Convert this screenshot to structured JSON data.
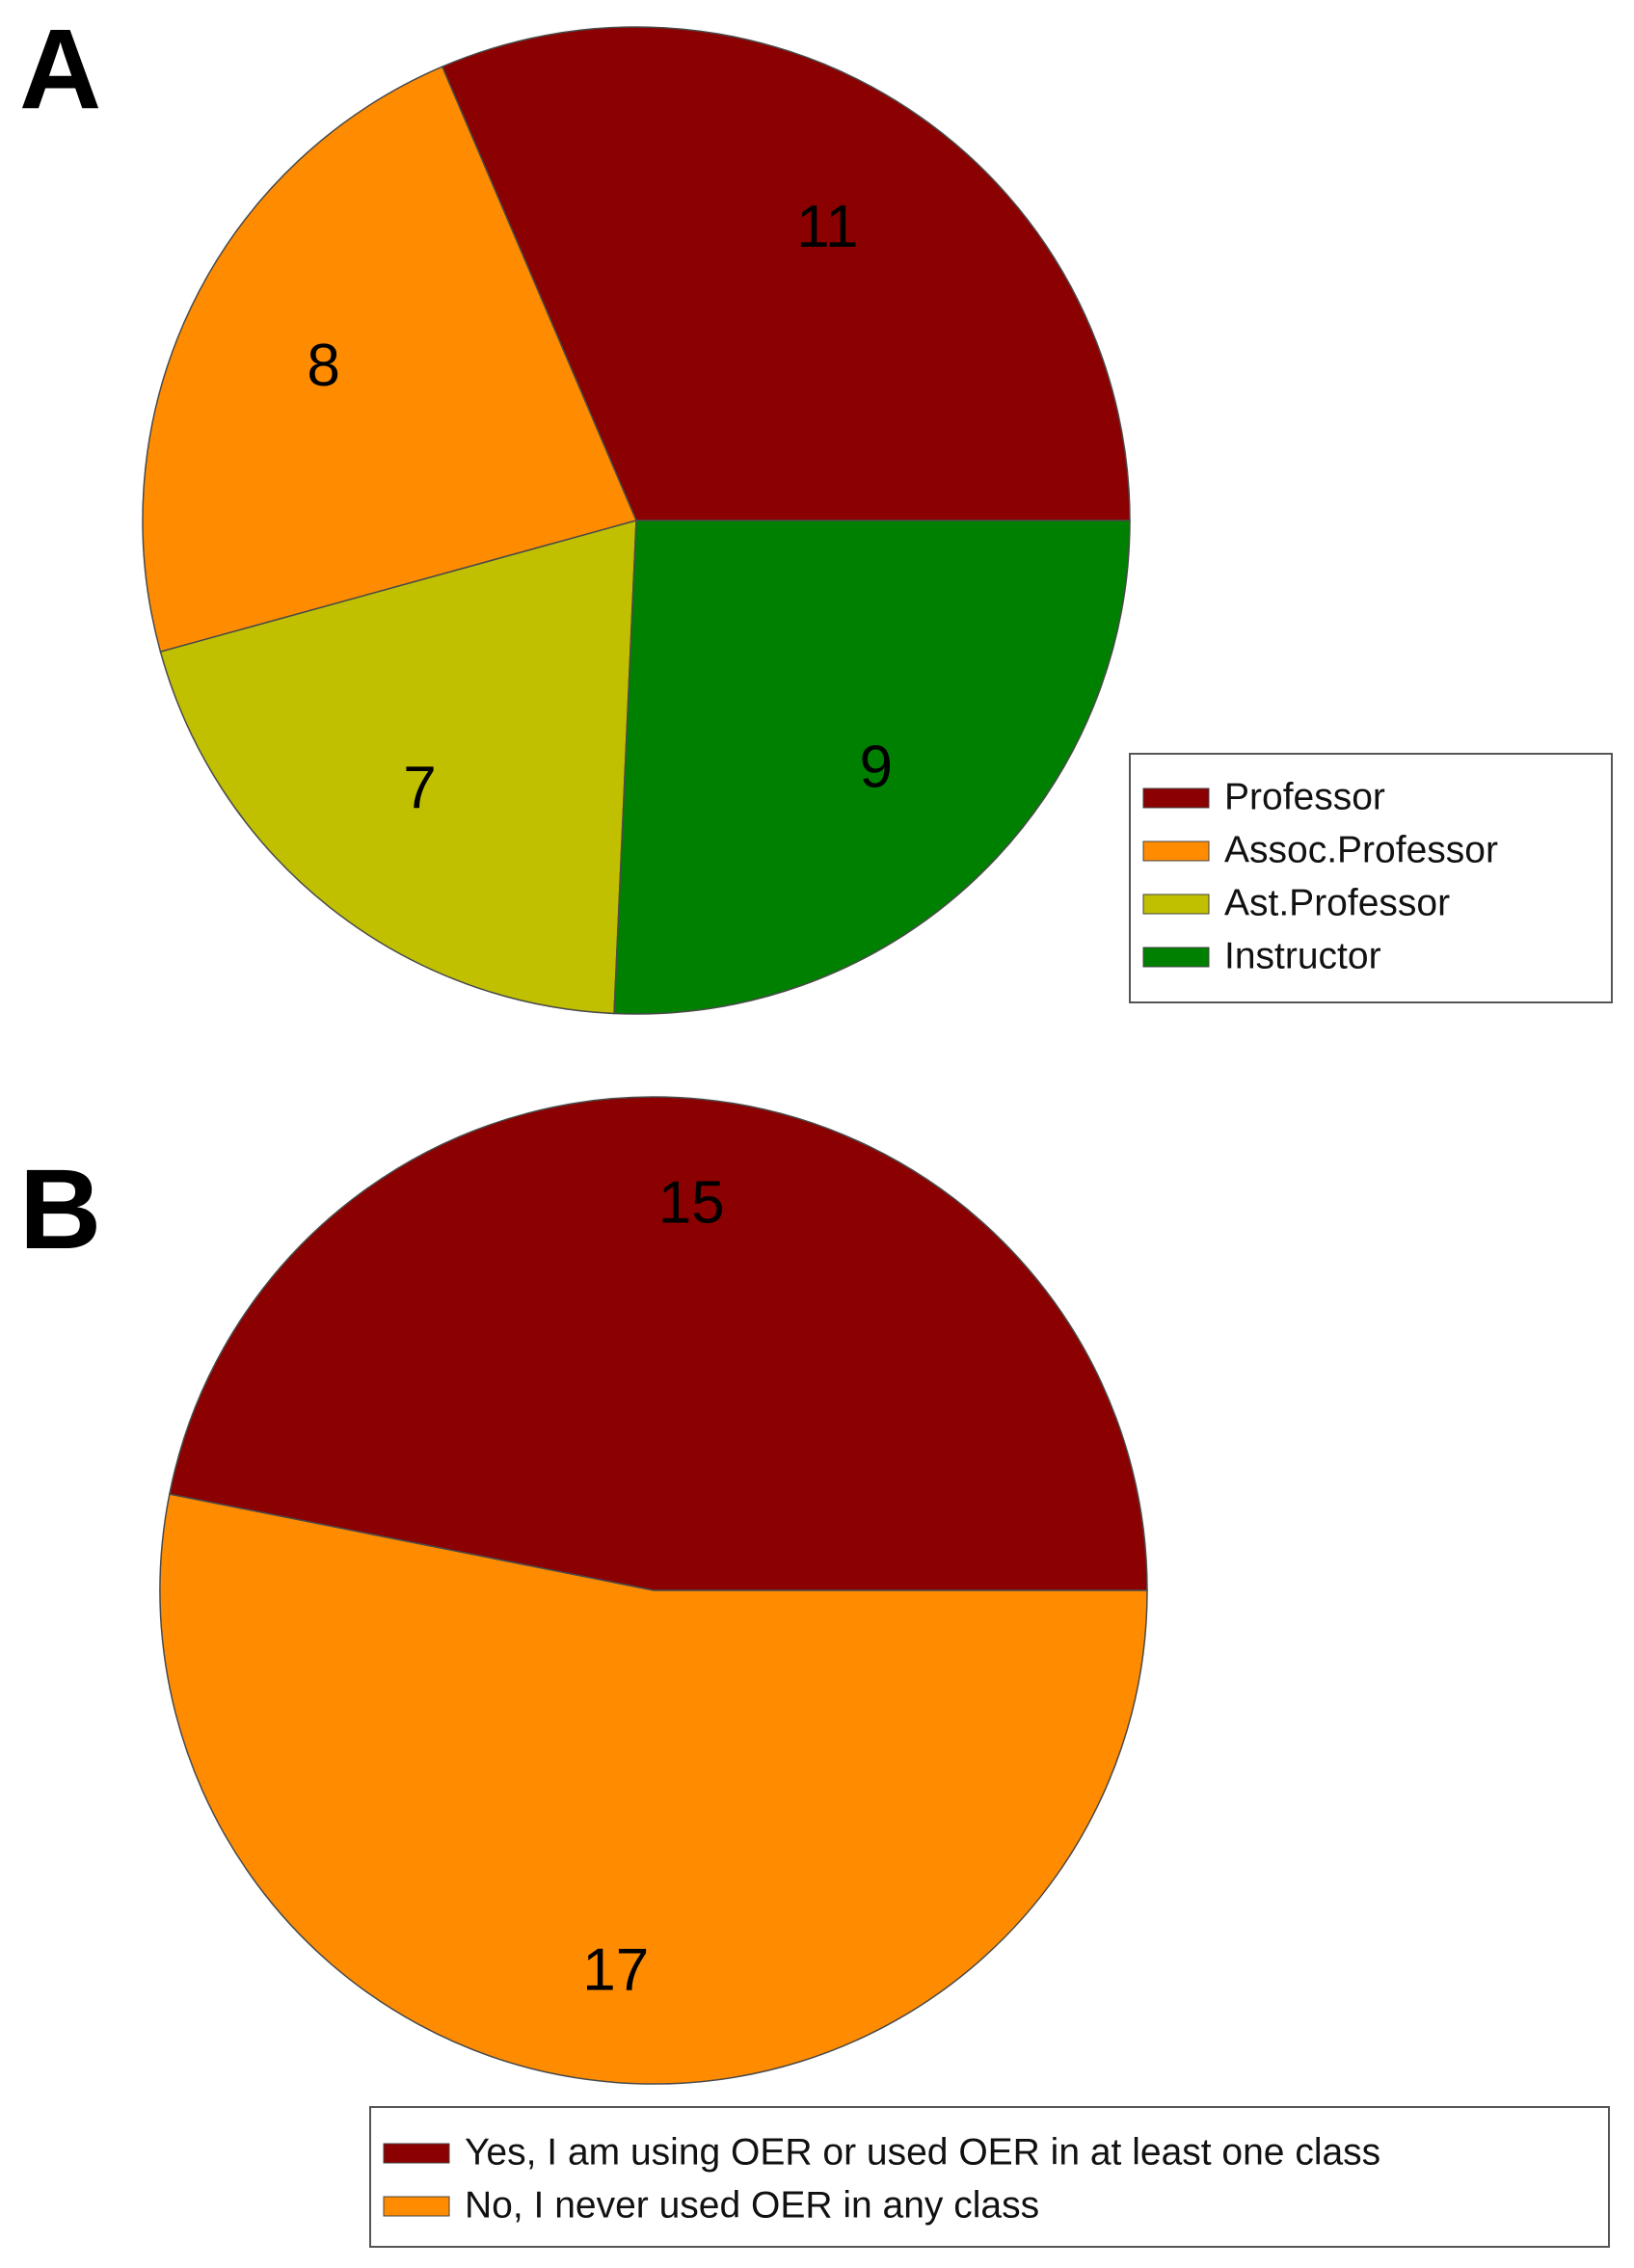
{
  "chart_data": [
    {
      "type": "pie",
      "panel": "A",
      "title": "",
      "legend_position": "bottom-right",
      "slices": [
        {
          "label": "Professor",
          "value": 11,
          "color": "#8b0000"
        },
        {
          "label": "Assoc.Professor",
          "value": 8,
          "color": "#ff8c00"
        },
        {
          "label": "Ast.Professor",
          "value": 7,
          "color": "#c0c000"
        },
        {
          "label": "Instructor",
          "value": 9,
          "color": "#008000"
        }
      ]
    },
    {
      "type": "pie",
      "panel": "B",
      "title": "",
      "legend_position": "bottom-right",
      "slices": [
        {
          "label": "Yes, I am using OER or used OER in at least one class",
          "value": 15,
          "color": "#8b0000"
        },
        {
          "label": "No, I never used OER in any class",
          "value": 17,
          "color": "#ff8c00"
        }
      ]
    }
  ]
}
